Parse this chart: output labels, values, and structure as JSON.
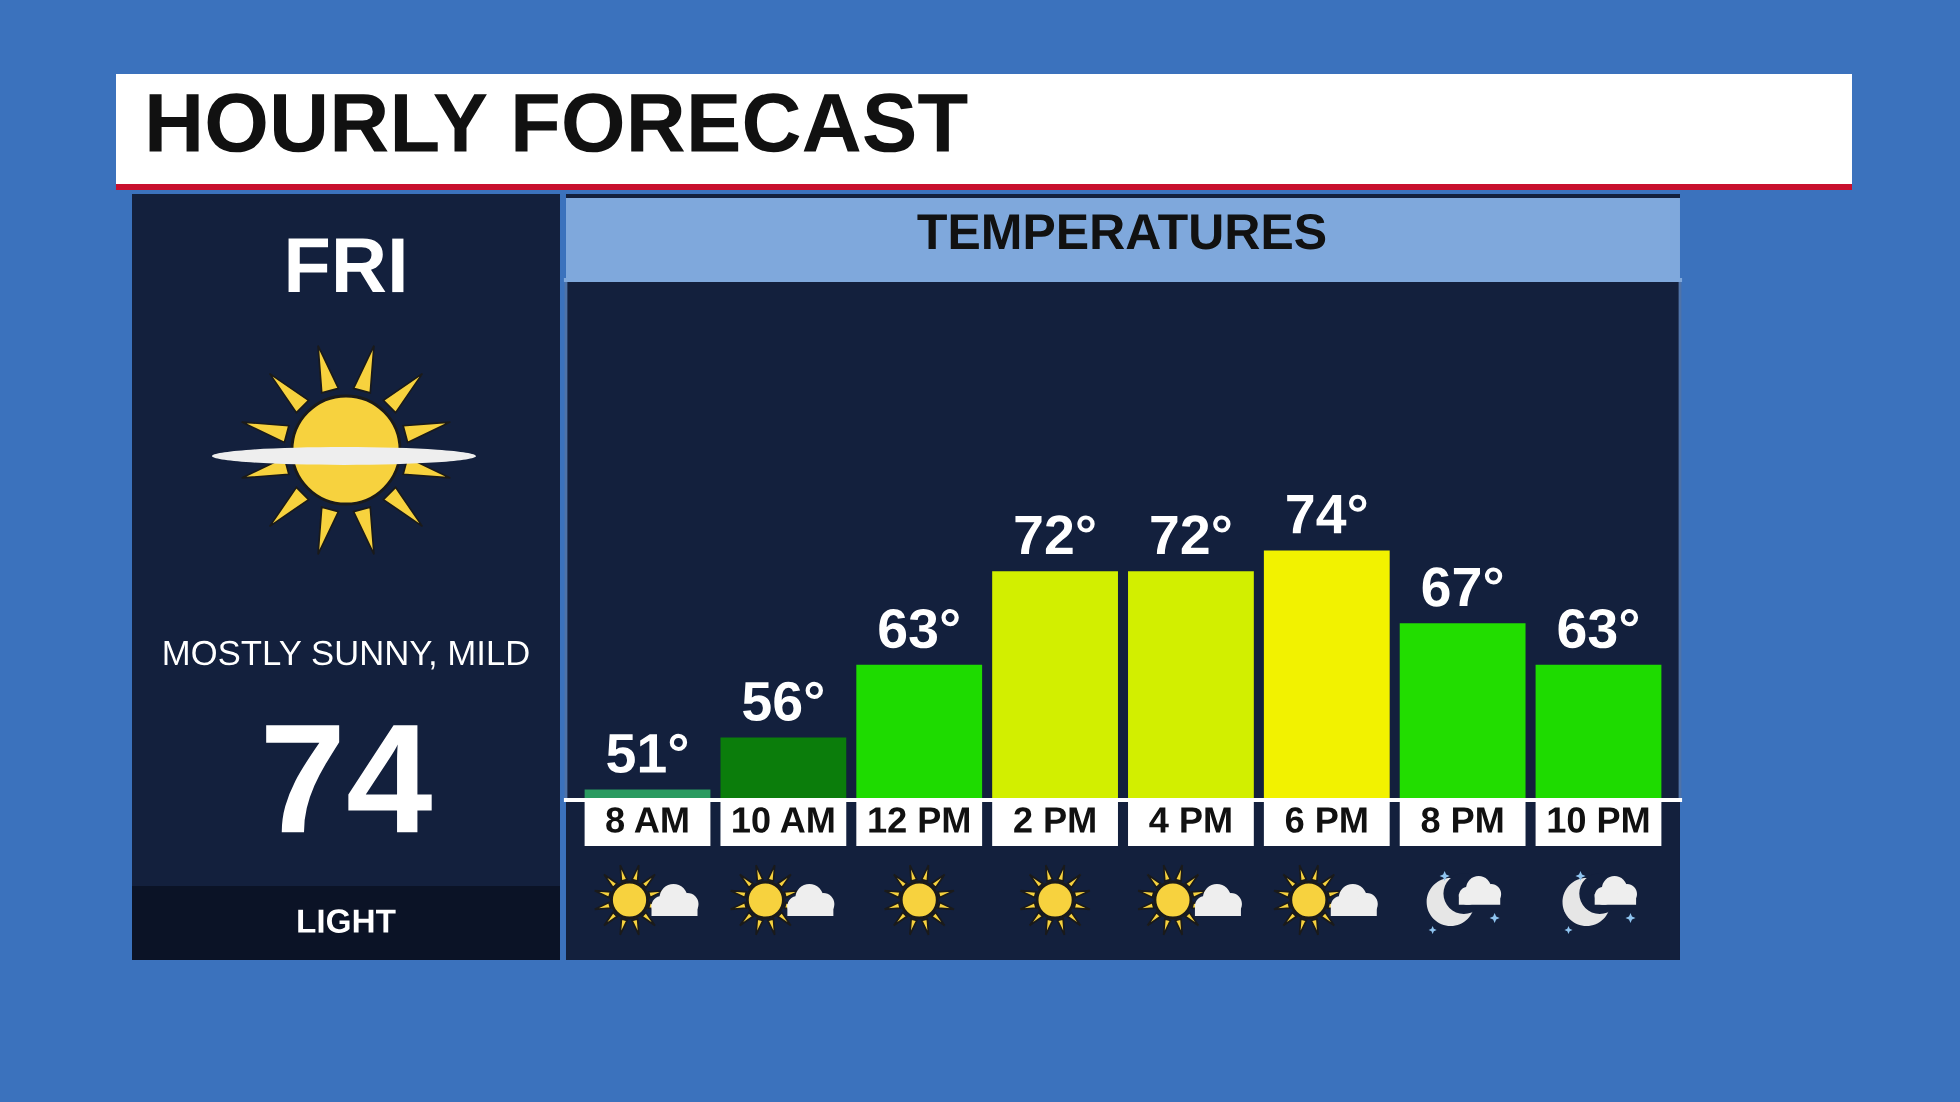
{
  "chart_data": [
    {
      "type": "other",
      "annotations": [
        "FRI",
        "MOSTLY SUNNY, MILD",
        "74",
        "LIGHT"
      ]
    },
    {
      "type": "bar",
      "title": "HOURLY FORECAST",
      "subtitle": "TEMPERATURES",
      "categories": [
        "8 AM",
        "10 AM",
        "12 PM",
        "2 PM",
        "4 PM",
        "6 PM",
        "8 PM",
        "10 PM"
      ],
      "values": [
        51,
        56,
        63,
        72,
        72,
        74,
        67,
        63
      ],
      "colors": [
        "#2a9a60",
        "#0b7d0b",
        "#1edb00",
        "#d2ef00",
        "#d2ef00",
        "#f2f200",
        "#22dd00",
        "#1edb00"
      ],
      "value_labels": [
        "51°",
        "56°",
        "63°",
        "72°",
        "72°",
        "74°",
        "67°",
        "63°"
      ],
      "ylim": [
        50,
        100
      ],
      "tick_labels": "x"
    }
  ]
}
